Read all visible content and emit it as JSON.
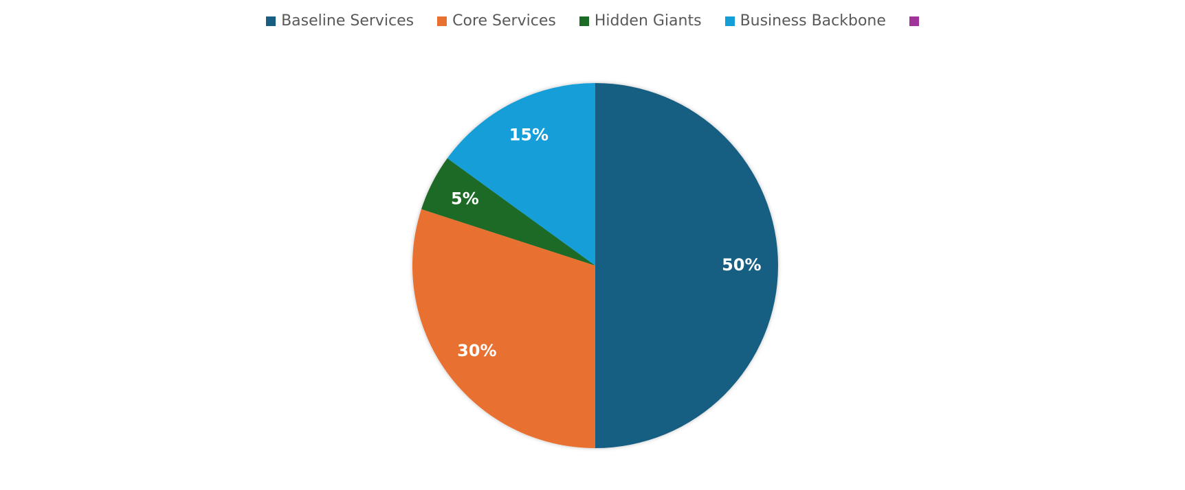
{
  "chart_data": {
    "type": "pie",
    "categories": [
      "Baseline Services",
      "Core Services",
      "Hidden Giants",
      "Business Backbone",
      null
    ],
    "values": [
      50,
      30,
      5,
      15,
      0
    ],
    "value_labels": [
      "50%",
      "30%",
      "5%",
      "15%",
      null
    ],
    "colors": [
      "#175e82",
      "#e87131",
      "#1c6b27",
      "#139ed8",
      "#a0349a"
    ],
    "legend": "top"
  }
}
